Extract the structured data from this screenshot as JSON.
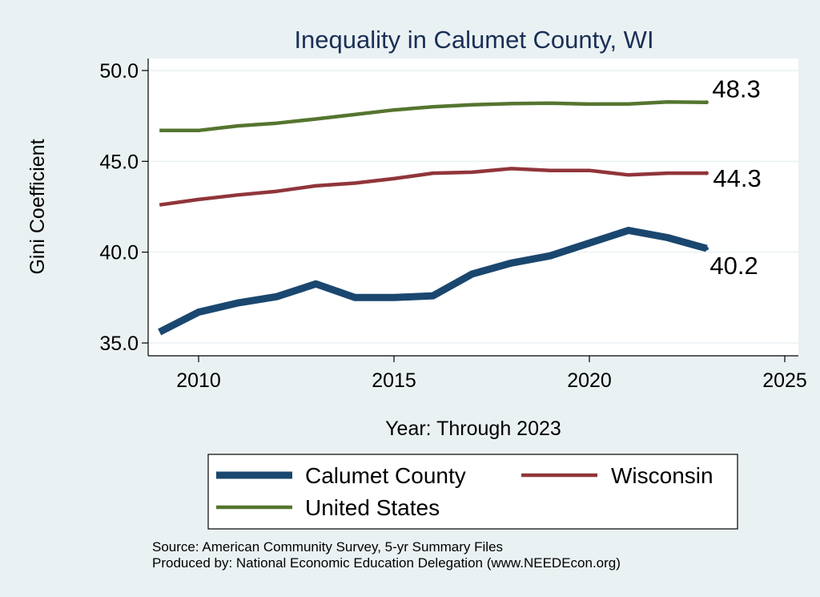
{
  "chart_data": {
    "type": "line",
    "title": "Inequality in Calumet County, WI",
    "xlabel": "Year: Through 2023",
    "ylabel": "Gini Coefficient",
    "xlim": [
      2008.5,
      2025.5
    ],
    "ylim": [
      34.6,
      50.6
    ],
    "x_ticks": [
      2010,
      2015,
      2020,
      2025
    ],
    "y_ticks": [
      35.0,
      40.0,
      45.0,
      50.0
    ],
    "y_tick_labels": [
      "35.0",
      "40.0",
      "45.0",
      "50.0"
    ],
    "grid": true,
    "x": [
      2009,
      2010,
      2011,
      2012,
      2013,
      2014,
      2015,
      2016,
      2017,
      2018,
      2019,
      2020,
      2021,
      2022,
      2023
    ],
    "series": [
      {
        "name": "Calumet County",
        "color": "#1a476f",
        "values": [
          35.6,
          36.7,
          37.2,
          37.55,
          38.25,
          37.5,
          37.5,
          37.6,
          38.8,
          39.4,
          39.8,
          40.5,
          41.2,
          40.8,
          40.2
        ],
        "end_label": "40.2"
      },
      {
        "name": "Wisconsin",
        "color": "#90353b",
        "values": [
          42.6,
          42.9,
          43.15,
          43.35,
          43.65,
          43.8,
          44.05,
          44.35,
          44.4,
          44.6,
          44.5,
          44.5,
          44.25,
          44.35,
          44.35
        ],
        "end_label": "44.3"
      },
      {
        "name": "United States",
        "color": "#55752f",
        "values": [
          46.7,
          46.7,
          46.95,
          47.1,
          47.33,
          47.58,
          47.83,
          48.0,
          48.11,
          48.18,
          48.2,
          48.15,
          48.16,
          48.27,
          48.25
        ],
        "end_label": "48.3"
      }
    ],
    "legend": [
      "Calumet County",
      "Wisconsin",
      "United States"
    ],
    "legend_position": "bottom"
  },
  "footer": {
    "source": "Source: American Community Survey, 5-yr Summary Files",
    "produced_by": "Produced by: National Economic Education Delegation (www.NEEDEcon.org)"
  }
}
